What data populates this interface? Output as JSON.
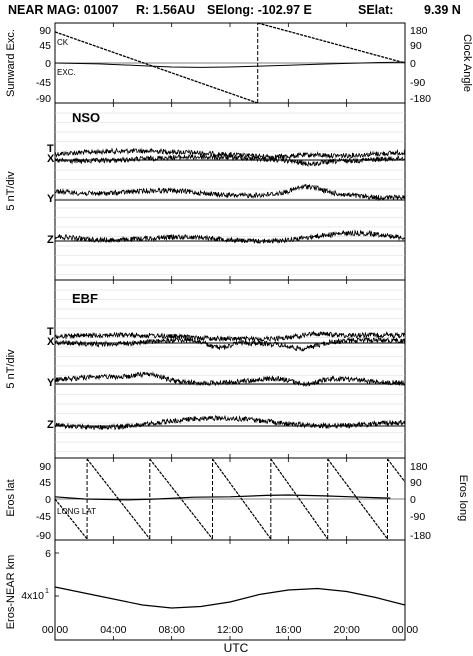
{
  "header": {
    "instrument": "NEAR MAG: 01007",
    "range": "R: 1.56AU",
    "selong": "SElong: -102.97 E",
    "selat_label": "SElat:",
    "selat_value": "9.39 N"
  },
  "x_axis": {
    "label": "UTC",
    "tick_labels": [
      "00:00",
      "04:00",
      "08:00",
      "12:00",
      "16:00",
      "20:00",
      "00:00"
    ],
    "tick_hours": [
      0,
      4,
      8,
      12,
      16,
      20,
      24
    ]
  },
  "panels": {
    "sunward": {
      "left_label": "Sunward Exc.",
      "right_label": "Clock Angle",
      "left_ticks": [
        "90",
        "45",
        "0",
        "-45",
        "-90"
      ],
      "right_ticks": [
        "180",
        "90",
        "0",
        "-90",
        "-180"
      ],
      "annot_ck": "CK",
      "annot_exc": "EXC."
    },
    "nso": {
      "title": "NSO",
      "scale_label": "5 nT/div",
      "trace_labels": [
        "T",
        "X",
        "Y",
        "Z"
      ]
    },
    "ebf": {
      "title": "EBF",
      "scale_label": "5 nT/div",
      "trace_labels": [
        "T",
        "X",
        "Y",
        "Z"
      ]
    },
    "eros": {
      "left_label": "Eros lat",
      "right_label": "Eros long",
      "left_ticks": [
        "90",
        "45",
        "0",
        "-45",
        "-90"
      ],
      "right_ticks": [
        "180",
        "90",
        "0",
        "-90",
        "-180"
      ],
      "annot": "LONG LAT"
    },
    "distance": {
      "left_label": "Eros-NEAR km",
      "tick_6": "6",
      "tick_4_base": "4x10",
      "tick_4_exp": "1"
    }
  },
  "chart_data": [
    {
      "type": "line",
      "panel": "sunward",
      "series": [
        {
          "x_hours": [
            0,
            13.9
          ],
          "clock_angle_deg": [
            140,
            -180
          ]
        },
        {
          "x_hours": [
            13.9,
            24
          ],
          "clock_angle_deg": [
            180,
            0
          ]
        },
        {
          "x_hours": [
            0,
            3,
            6,
            8,
            10,
            12,
            14,
            16,
            18,
            20,
            22,
            24
          ],
          "sunward_exc_deg": [
            0,
            -2,
            -6,
            -9,
            -10,
            -9,
            -7,
            -5,
            -3,
            -1,
            1,
            2
          ]
        }
      ],
      "ylim_left": [
        -90,
        90
      ],
      "ylim_right": [
        -180,
        180
      ]
    },
    {
      "type": "line",
      "panel": "nso",
      "units": "5 nT/div",
      "series": [
        {
          "name": "T",
          "baseline_div": 0
        },
        {
          "name": "X",
          "baseline_div": 0
        },
        {
          "name": "Y",
          "baseline_div": -1
        },
        {
          "name": "Z",
          "baseline_div": -2
        }
      ]
    },
    {
      "type": "line",
      "panel": "ebf",
      "units": "5 nT/div",
      "series": [
        {
          "name": "T",
          "baseline_div": 0
        },
        {
          "name": "X",
          "baseline_div": 0
        },
        {
          "name": "Y",
          "baseline_div": -1
        },
        {
          "name": "Z",
          "baseline_div": -2
        }
      ]
    },
    {
      "type": "line",
      "panel": "eros",
      "series": [
        {
          "x_hours": [
            0,
            2,
            5,
            7,
            9.5,
            12,
            14.5,
            16,
            18.5,
            21,
            23
          ],
          "eros_lat_deg": [
            5,
            0,
            -2,
            0,
            4,
            5,
            8,
            9,
            7,
            4,
            2
          ]
        }
      ],
      "eros_long_wraps_hours": [
        2.2,
        6.5,
        10.8,
        14.8,
        18.7,
        22.8
      ],
      "ylim_left": [
        -90,
        90
      ],
      "ylim_right": [
        -180,
        180
      ]
    },
    {
      "type": "line",
      "panel": "distance",
      "series": [
        {
          "x_hours": [
            0,
            3,
            6,
            8,
            10,
            12,
            14,
            16,
            18,
            20,
            22,
            24
          ],
          "distance_1e1_km": [
            4.3,
            4.0,
            3.7,
            3.6,
            3.65,
            3.8,
            4.05,
            4.2,
            4.25,
            4.15,
            3.95,
            3.7
          ]
        }
      ]
    }
  ]
}
